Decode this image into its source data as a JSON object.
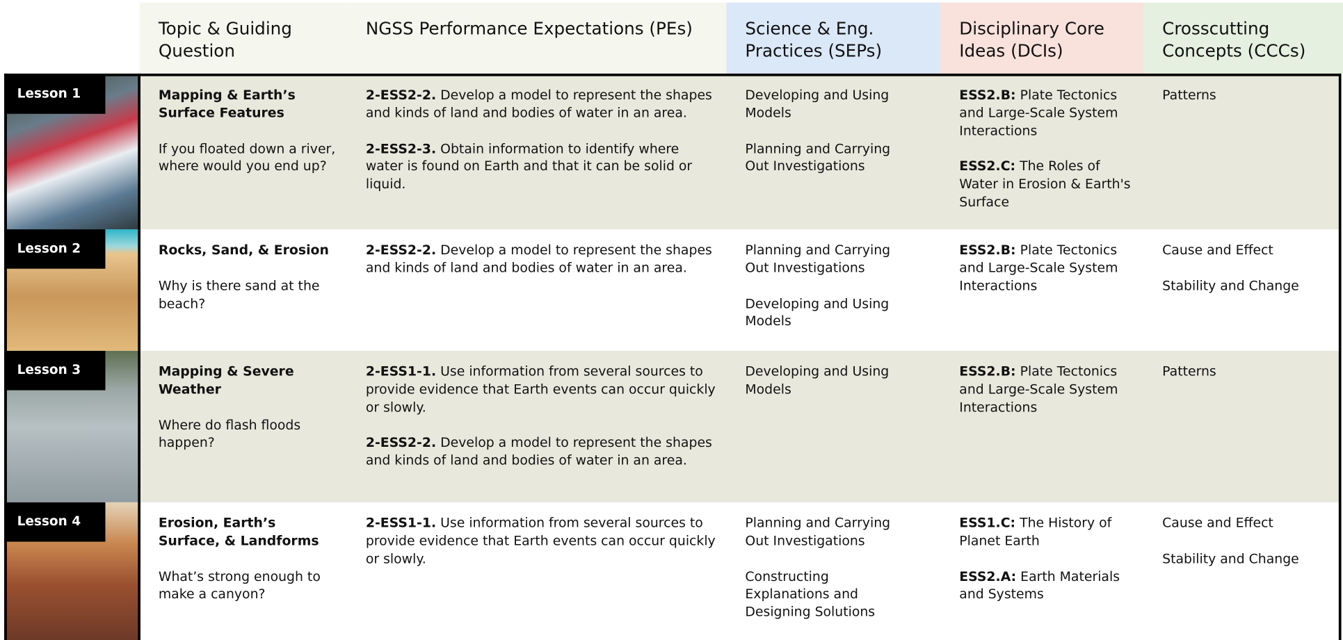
{
  "header": {
    "columns": [
      "Topic & Guiding Question",
      "NGSS Performance Expectations (PEs)",
      "Science & Eng. Practices (SEPs)",
      "Disciplinary Core Ideas (DCIs)",
      "Crosscutting Concepts (CCCs)"
    ]
  },
  "rows": [
    {
      "lesson": "Lesson 1",
      "topic": "Mapping & Earth’s Surface Features",
      "question": "If you floated down a river, where would you end up?",
      "pes": [
        {
          "code": "2-ESS2-2.",
          "text": "Develop a model to represent the shapes and kinds of land and bodies of water in an area."
        },
        {
          "code": "2-ESS2-3.",
          "text": "Obtain information to identify where water is found on Earth and that it can be solid or liquid."
        }
      ],
      "seps": [
        "Developing and Using Models",
        "Planning and Carrying Out Investigations"
      ],
      "dcis": [
        {
          "code": "ESS2.B:",
          "text": "Plate Tectonics and Large-Scale System Interactions"
        },
        {
          "code": "ESS2.C:",
          "text": "The Roles of Water in Erosion & Earth's Surface"
        }
      ],
      "cccs": [
        "Patterns"
      ]
    },
    {
      "lesson": "Lesson 2",
      "topic": "Rocks, Sand, & Erosion",
      "question": "Why is there sand at the beach?",
      "pes": [
        {
          "code": "2-ESS2-2.",
          "text": "Develop a model to represent the shapes and kinds of land and bodies of water in an area."
        }
      ],
      "seps": [
        "Planning and Carrying Out Investigations",
        "Developing and Using Models"
      ],
      "dcis": [
        {
          "code": "ESS2.B:",
          "text": "Plate Tectonics and Large-Scale System Interactions"
        }
      ],
      "cccs": [
        "Cause and Effect",
        "Stability and Change"
      ]
    },
    {
      "lesson": "Lesson 3",
      "topic": "Mapping & Severe Weather",
      "question": "Where do flash floods happen?",
      "pes": [
        {
          "code": "2-ESS1-1.",
          "text": "Use information from several sources to provide evidence that Earth events can occur quickly or slowly."
        },
        {
          "code": "2-ESS2-2.",
          "text": "Develop a model to represent the shapes and kinds of land and bodies of water in an area."
        }
      ],
      "seps": [
        "Developing and Using Models"
      ],
      "dcis": [
        {
          "code": "ESS2.B:",
          "text": "Plate Tectonics and Large-Scale System Interactions"
        }
      ],
      "cccs": [
        "Patterns"
      ]
    },
    {
      "lesson": "Lesson 4",
      "topic": "Erosion, Earth’s Surface, & Landforms",
      "question": "What’s strong enough to make a canyon?",
      "pes": [
        {
          "code": "2-ESS1-1.",
          "text": "Use information from several sources to provide evidence that Earth events can occur quickly or slowly."
        }
      ],
      "seps": [
        "Planning and Carrying Out Investigations",
        "Constructing Explanations and Designing Solutions"
      ],
      "dcis": [
        {
          "code": "ESS1.C:",
          "text": "The History of Planet Earth"
        },
        {
          "code": "ESS2.A:",
          "text": "Earth Materials and Systems"
        }
      ],
      "cccs": [
        "Cause and Effect",
        "Stability and Change"
      ]
    }
  ]
}
